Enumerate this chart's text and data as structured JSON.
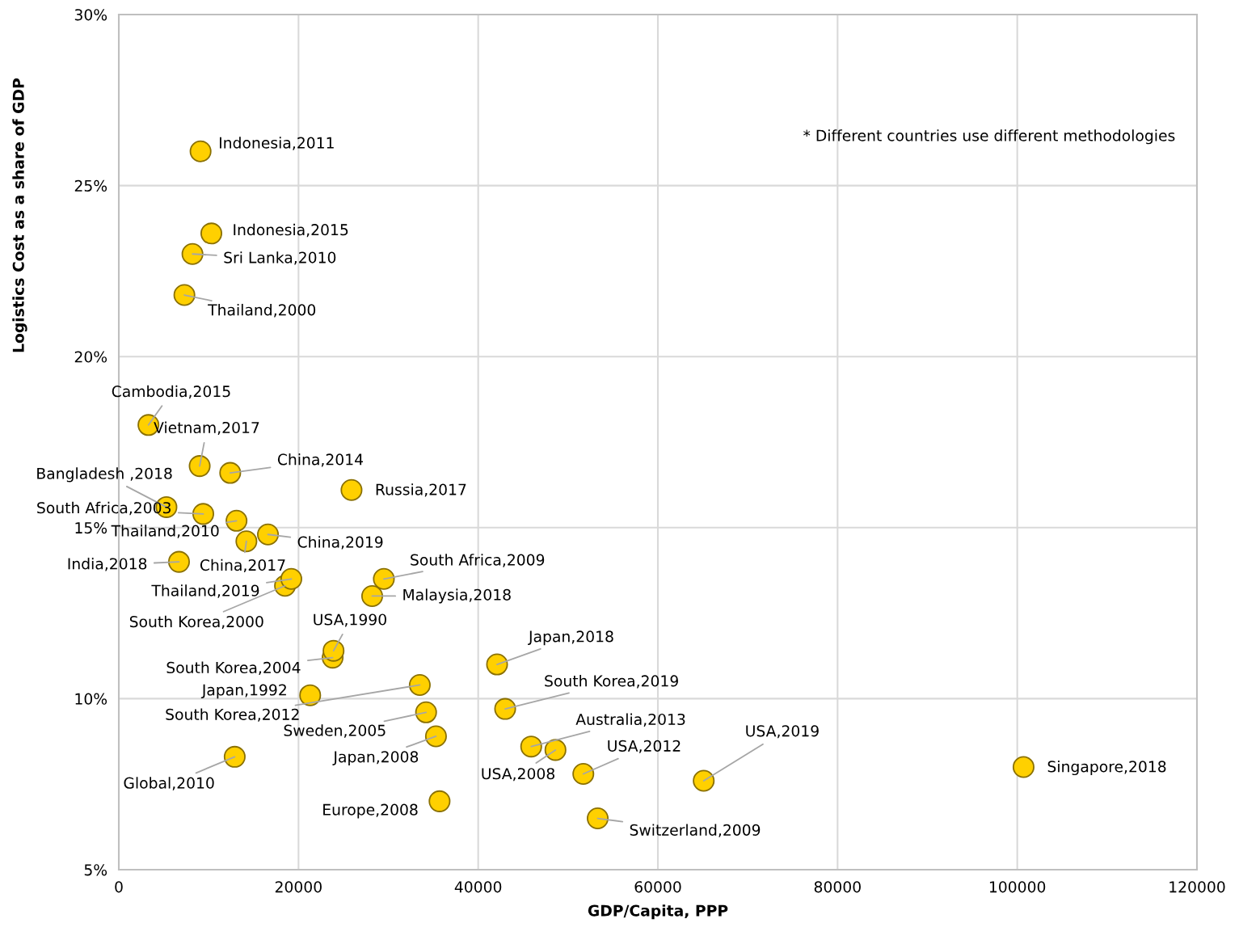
{
  "chart_data": {
    "type": "scatter",
    "xlabel": "GDP/Capita, PPP",
    "ylabel": "Logistics Cost as a share of GDP",
    "xlim": [
      0,
      120000
    ],
    "xticks": [
      0,
      20000,
      40000,
      60000,
      80000,
      100000,
      120000
    ],
    "ylim": [
      5,
      30
    ],
    "yticks": [
      {
        "value": 5,
        "label": "5%"
      },
      {
        "value": 10,
        "label": "10%"
      },
      {
        "value": 15,
        "label": "15%"
      },
      {
        "value": 20,
        "label": "20%"
      },
      {
        "value": 25,
        "label": "25%"
      },
      {
        "value": 30,
        "label": "30%"
      }
    ],
    "grid": true,
    "marker": "circle",
    "series": [
      {
        "color": "#ffd000",
        "x": [
          9100,
          10300,
          8200,
          7300,
          3300,
          9000,
          12400,
          5300,
          25900,
          9400,
          13100,
          16600,
          6700,
          14200,
          29500,
          19200,
          28200,
          18500,
          23900,
          23800,
          42100,
          43000,
          21300,
          33500,
          45900,
          34200,
          65100,
          51700,
          35300,
          12900,
          48600,
          100700,
          35700,
          53300
        ],
        "values": [
          26.0,
          23.6,
          23.0,
          21.8,
          18.0,
          16.8,
          16.6,
          15.6,
          16.1,
          15.4,
          15.2,
          14.8,
          14.0,
          14.6,
          13.5,
          13.5,
          13.0,
          13.3,
          11.4,
          11.2,
          11.0,
          9.7,
          10.1,
          10.4,
          8.6,
          9.6,
          7.6,
          7.8,
          8.9,
          8.3,
          8.5,
          8.0,
          7.0,
          6.5
        ]
      }
    ],
    "annotations": [
      "* Different countries use different methodologies",
      {
        "text": "Indonesia,2011",
        "x": 9100,
        "y": 26.0
      },
      {
        "text": "Indonesia,2015",
        "x": 10300,
        "y": 23.6
      },
      {
        "text": "Sri Lanka,2010",
        "x": 8200,
        "y": 23.0
      },
      {
        "text": "Thailand,2000",
        "x": 7300,
        "y": 21.8
      },
      {
        "text": "Cambodia,2015",
        "x": 3300,
        "y": 18.0
      },
      {
        "text": "Vietnam,2017",
        "x": 9000,
        "y": 16.8
      },
      {
        "text": "China,2014",
        "x": 12400,
        "y": 16.6
      },
      {
        "text": "Bangladesh ,2018",
        "x": 5300,
        "y": 15.6
      },
      {
        "text": "Russia,2017",
        "x": 25900,
        "y": 16.1
      },
      {
        "text": "South Africa,2003",
        "x": 9400,
        "y": 15.4
      },
      {
        "text": "Thailand,2010",
        "x": 13100,
        "y": 15.2
      },
      {
        "text": "China,2019",
        "x": 16600,
        "y": 14.8
      },
      {
        "text": "India,2018",
        "x": 6700,
        "y": 14.0
      },
      {
        "text": "China,2017",
        "x": 14200,
        "y": 14.6
      },
      {
        "text": "South Africa,2009",
        "x": 29500,
        "y": 13.5
      },
      {
        "text": "Thailand,2019",
        "x": 19200,
        "y": 13.5
      },
      {
        "text": "Malaysia,2018",
        "x": 28200,
        "y": 13.0
      },
      {
        "text": "South Korea,2000",
        "x": 18500,
        "y": 13.3
      },
      {
        "text": "USA,1990",
        "x": 23900,
        "y": 11.4
      },
      {
        "text": "South Korea,2004",
        "x": 23800,
        "y": 11.2
      },
      {
        "text": "Japan,2018",
        "x": 42100,
        "y": 11.0
      },
      {
        "text": "South Korea,2019",
        "x": 43000,
        "y": 9.7
      },
      {
        "text": "Japan,1992",
        "x": 21300,
        "y": 10.1
      },
      {
        "text": "South Korea,2012",
        "x": 33500,
        "y": 10.4
      },
      {
        "text": "Australia,2013",
        "x": 45900,
        "y": 8.6
      },
      {
        "text": "Sweden,2005",
        "x": 34200,
        "y": 9.6
      },
      {
        "text": "USA,2019",
        "x": 65100,
        "y": 7.6
      },
      {
        "text": "USA,2012",
        "x": 51700,
        "y": 7.8
      },
      {
        "text": "Japan,2008",
        "x": 35300,
        "y": 8.9
      },
      {
        "text": "Global,2010",
        "x": 12900,
        "y": 8.3
      },
      {
        "text": "USA,2008",
        "x": 48600,
        "y": 8.5
      },
      {
        "text": "Singapore,2018",
        "x": 100700,
        "y": 8.0
      },
      {
        "text": "Europe,2008",
        "x": 35700,
        "y": 7.0
      },
      {
        "text": "Switzerland,2009",
        "x": 53300,
        "y": 6.5
      }
    ]
  }
}
